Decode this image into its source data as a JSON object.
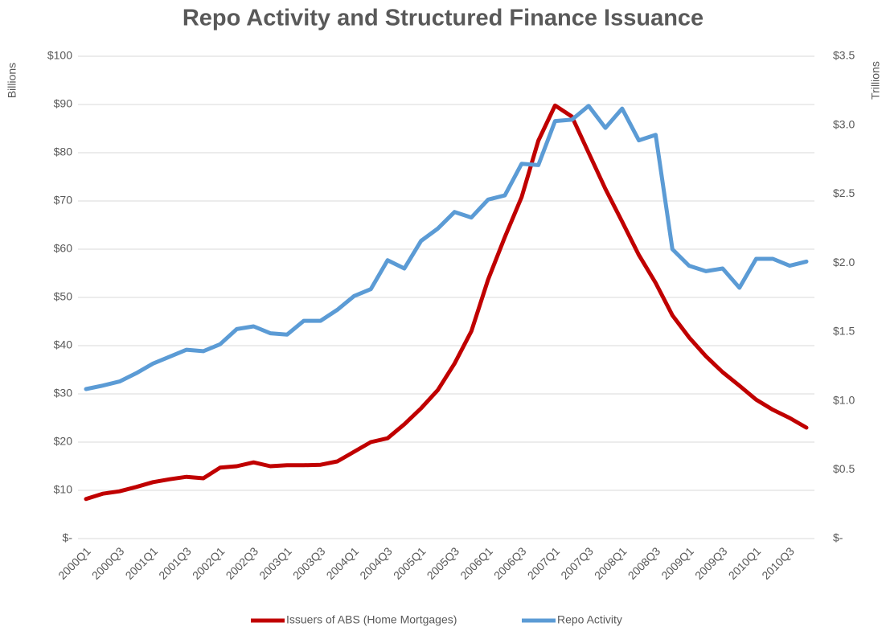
{
  "chart_data": {
    "type": "line",
    "title": "Repo Activity and Structured Finance Issuance",
    "y_label": "Billions",
    "y2_label": "Trillions",
    "categories": [
      "2000Q1",
      null,
      "2000Q3",
      null,
      "2001Q1",
      null,
      "2001Q3",
      null,
      "2002Q1",
      null,
      "2002Q3",
      null,
      "2003Q1",
      null,
      "2003Q3",
      null,
      "2004Q1",
      null,
      "2004Q3",
      null,
      "2005Q1",
      null,
      "2005Q3",
      null,
      "2006Q1",
      null,
      "2006Q3",
      null,
      "2007Q1",
      null,
      "2007Q3",
      null,
      "2008Q1",
      null,
      "2008Q3",
      null,
      "2009Q1",
      null,
      "2009Q3",
      null,
      "2010Q1",
      null,
      "2010Q3",
      null
    ],
    "series": [
      {
        "name": "Issuers of ABS (Home Mortgages)",
        "color": "#c00000",
        "values": [
          8.2,
          9.3,
          9.8,
          10.7,
          11.7,
          12.3,
          12.8,
          12.5,
          14.7,
          15.0,
          15.8,
          15.0,
          15.2,
          15.2,
          15.3,
          16.0,
          18.0,
          20.0,
          20.8,
          23.7,
          27.0,
          30.8,
          36.3,
          43.0,
          53.7,
          62.5,
          70.8,
          82.5,
          89.8,
          87.5,
          80.0,
          72.5,
          65.7,
          58.8,
          53.0,
          46.3,
          41.7,
          37.8,
          34.5,
          31.7,
          28.8,
          26.7,
          25.0,
          23.0
        ]
      },
      {
        "name": "Repo Activity",
        "color": "#5b9bd5",
        "axis": "y2",
        "values": [
          1.085,
          1.11,
          1.14,
          1.2,
          1.27,
          1.32,
          1.37,
          1.36,
          1.41,
          1.52,
          1.54,
          1.49,
          1.48,
          1.58,
          1.58,
          1.66,
          1.76,
          1.81,
          2.02,
          1.96,
          2.16,
          2.25,
          2.37,
          2.33,
          2.46,
          2.49,
          2.72,
          2.71,
          3.03,
          3.04,
          3.14,
          2.98,
          3.12,
          2.89,
          2.93,
          2.1,
          1.98,
          1.94,
          1.96,
          1.82,
          2.03,
          2.03,
          1.98,
          2.01
        ]
      }
    ],
    "ylim": [
      0,
      100
    ],
    "yticks": [
      {
        "value": 0,
        "label": "$-"
      },
      {
        "value": 10,
        "label": "$10"
      },
      {
        "value": 20,
        "label": "$20"
      },
      {
        "value": 30,
        "label": "$30"
      },
      {
        "value": 40,
        "label": "$40"
      },
      {
        "value": 50,
        "label": "$50"
      },
      {
        "value": 60,
        "label": "$60"
      },
      {
        "value": 70,
        "label": "$70"
      },
      {
        "value": 80,
        "label": "$80"
      },
      {
        "value": 90,
        "label": "$90"
      },
      {
        "value": 100,
        "label": "$100"
      }
    ],
    "y2lim": [
      0,
      3.5
    ],
    "y2ticks": [
      {
        "value": 0,
        "label": "$-"
      },
      {
        "value": 0.5,
        "label": "$0.5"
      },
      {
        "value": 1.0,
        "label": "$1.0"
      },
      {
        "value": 1.5,
        "label": "$1.5"
      },
      {
        "value": 2.0,
        "label": "$2.0"
      },
      {
        "value": 2.5,
        "label": "$2.5"
      },
      {
        "value": 3.0,
        "label": "$3.0"
      },
      {
        "value": 3.5,
        "label": "$3.5"
      }
    ],
    "grid": true,
    "legend": "bottom"
  }
}
